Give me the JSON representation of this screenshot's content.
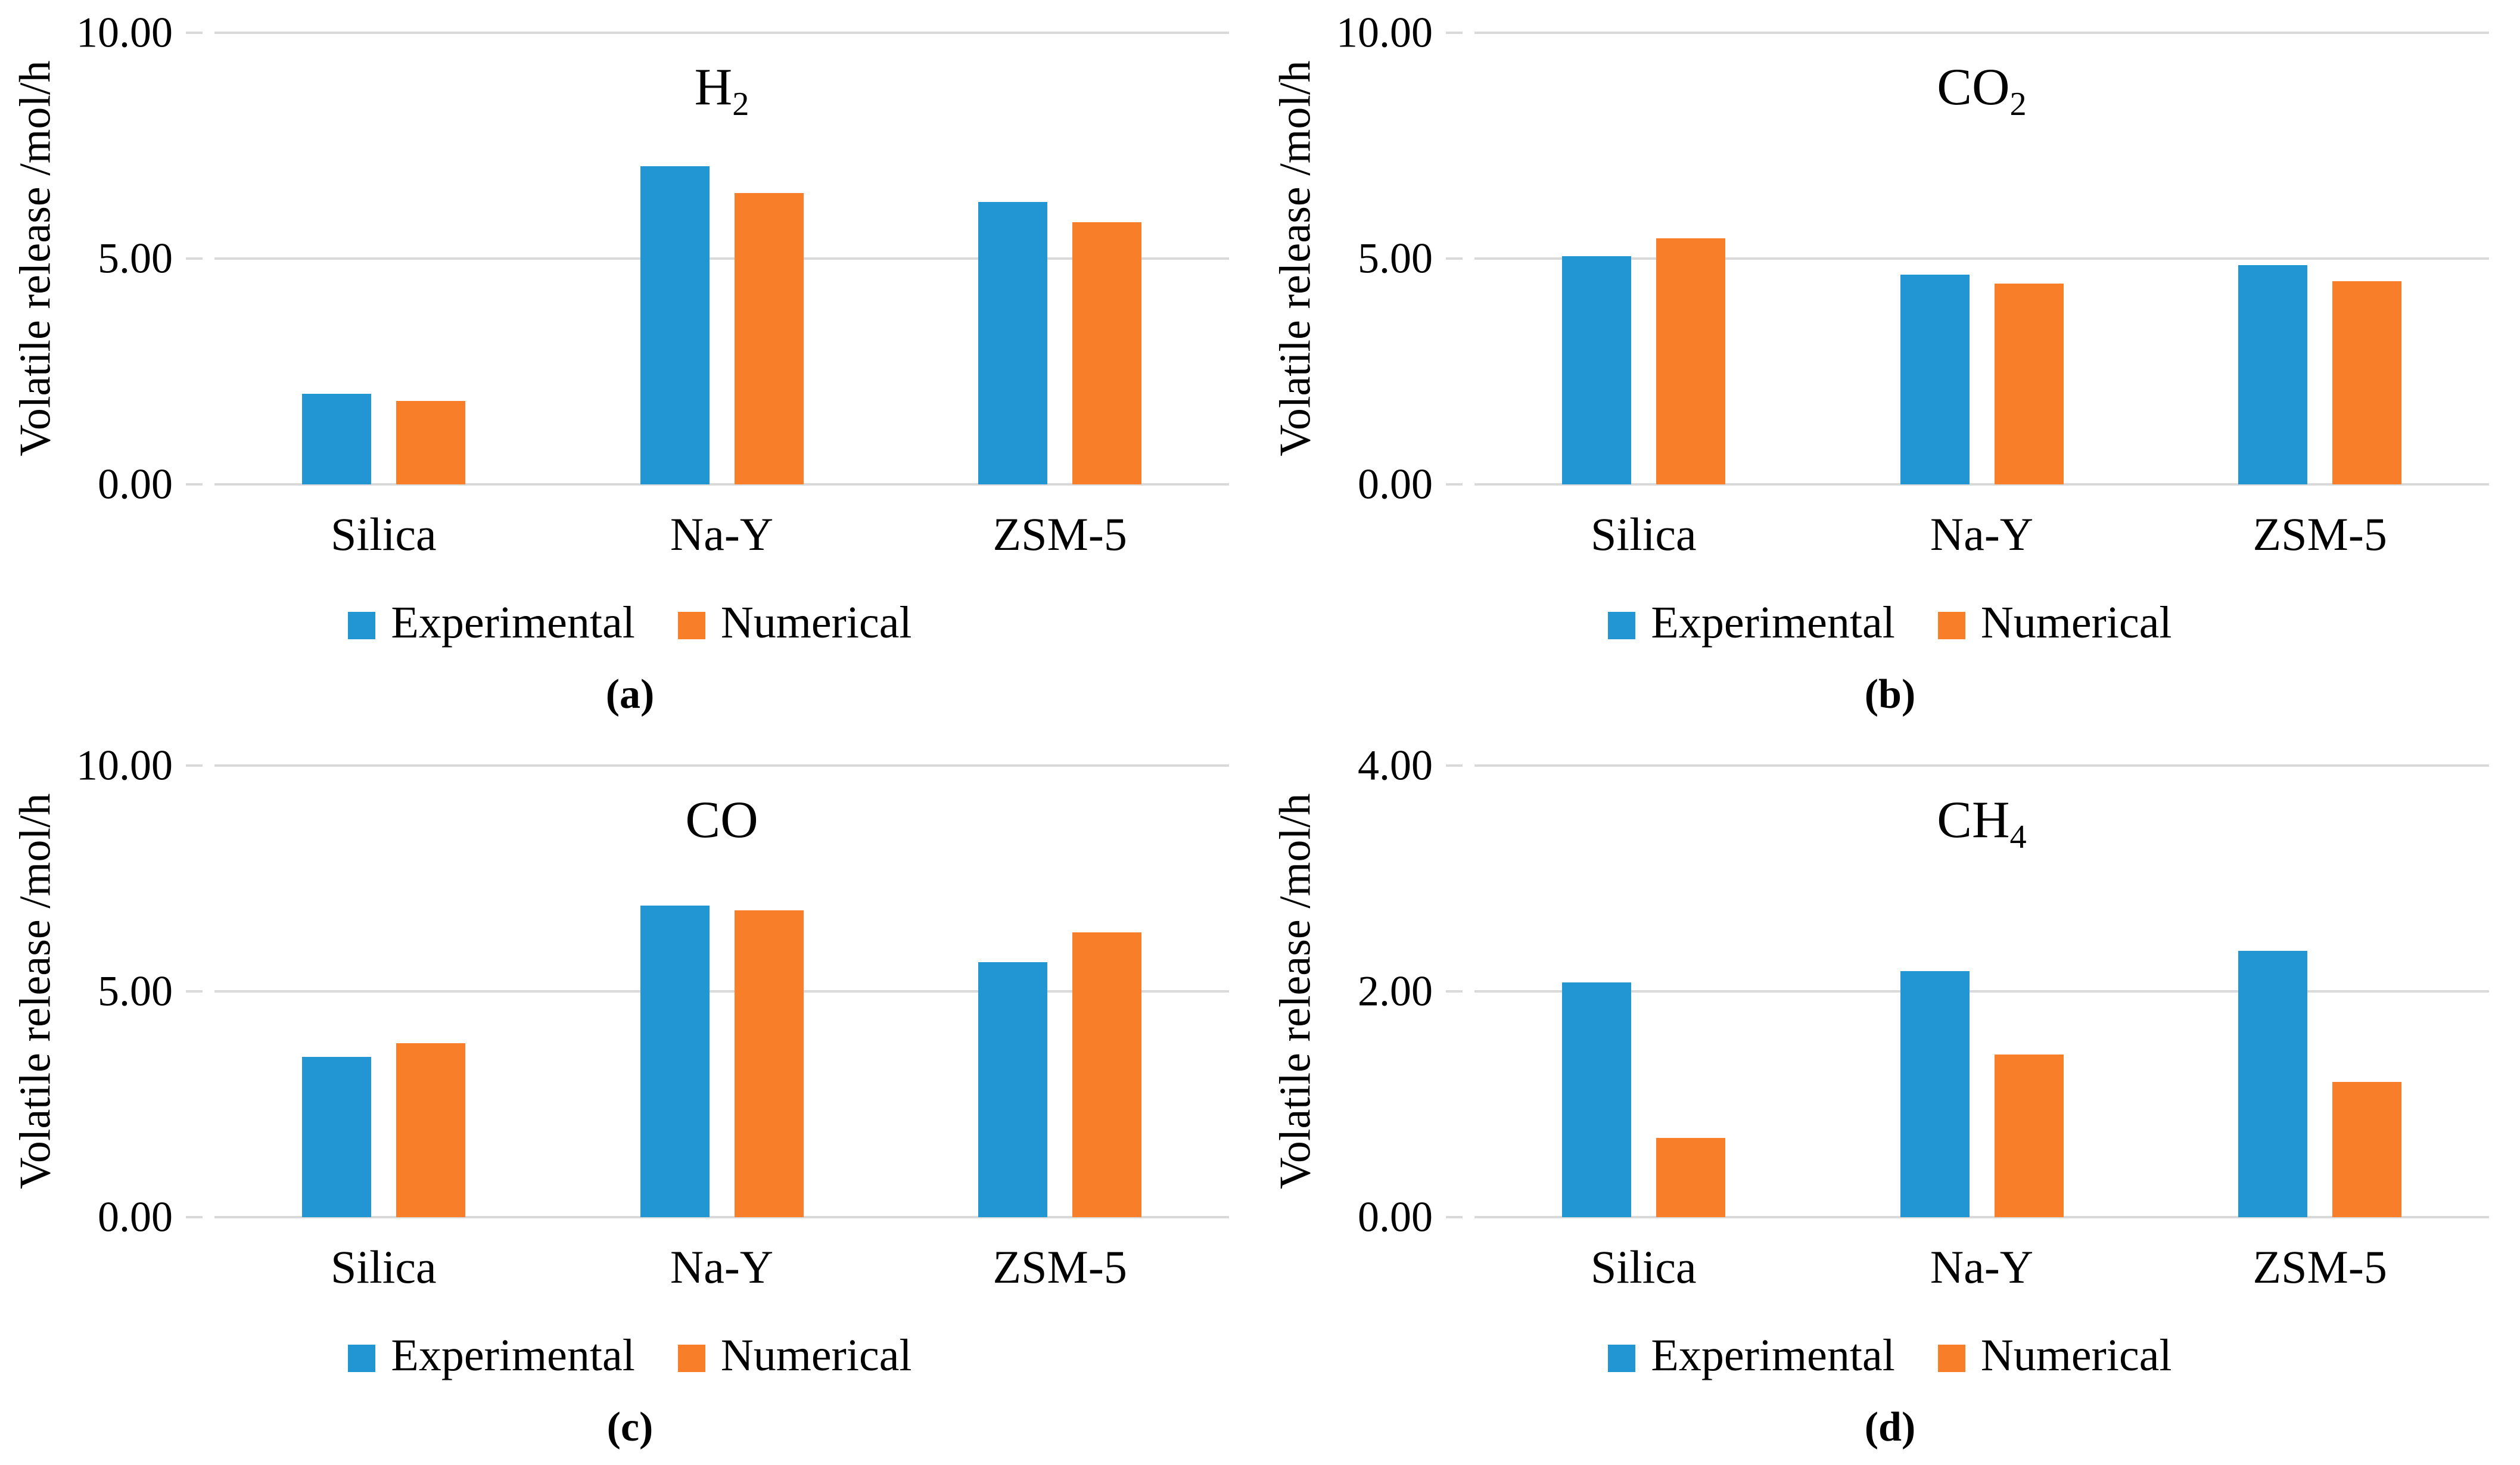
{
  "colors": {
    "experimental": "#2196D3",
    "numerical": "#F97E29",
    "gridline": "#D9D9D9",
    "text": "#000000",
    "background": "#FFFFFF"
  },
  "chart_data": [
    {
      "id": "a",
      "type": "bar",
      "title": "H2",
      "title_main": "H",
      "title_sub": "2",
      "caption": "(a)",
      "ylabel": "Volatile release /mol/h",
      "xlabel": "",
      "categories": [
        "Silica",
        "Na-Y",
        "ZSM-5"
      ],
      "series": [
        {
          "name": "Experimental",
          "values": [
            2.0,
            7.05,
            6.25
          ]
        },
        {
          "name": "Numerical",
          "values": [
            1.85,
            6.45,
            5.8
          ]
        }
      ],
      "ylim": [
        0,
        10
      ],
      "yticks": [
        10,
        5,
        0
      ],
      "ytick_labels": [
        "10.00",
        "5.00",
        "0.00"
      ],
      "grid": true,
      "legend_position": "bottom"
    },
    {
      "id": "b",
      "type": "bar",
      "title": "CO2",
      "title_main": "CO",
      "title_sub": "2",
      "caption": "(b)",
      "ylabel": "Volatile release /mol/h",
      "xlabel": "",
      "categories": [
        "Silica",
        "Na-Y",
        "ZSM-5"
      ],
      "series": [
        {
          "name": "Experimental",
          "values": [
            5.05,
            4.65,
            4.85
          ]
        },
        {
          "name": "Numerical",
          "values": [
            5.45,
            4.45,
            4.5
          ]
        }
      ],
      "ylim": [
        0,
        10
      ],
      "yticks": [
        10,
        5,
        0
      ],
      "ytick_labels": [
        "10.00",
        "5.00",
        "0.00"
      ],
      "grid": true,
      "legend_position": "bottom"
    },
    {
      "id": "c",
      "type": "bar",
      "title": "CO",
      "title_main": "CO",
      "title_sub": "",
      "caption": "(c)",
      "ylabel": "Volatile release /mol/h",
      "xlabel": "",
      "categories": [
        "Silica",
        "Na-Y",
        "ZSM-5"
      ],
      "series": [
        {
          "name": "Experimental",
          "values": [
            3.55,
            6.9,
            5.65
          ]
        },
        {
          "name": "Numerical",
          "values": [
            3.85,
            6.8,
            6.3
          ]
        }
      ],
      "ylim": [
        0,
        10
      ],
      "yticks": [
        10,
        5,
        0
      ],
      "ytick_labels": [
        "10.00",
        "5.00",
        "0.00"
      ],
      "grid": true,
      "legend_position": "bottom"
    },
    {
      "id": "d",
      "type": "bar",
      "title": "CH4",
      "title_main": "CH",
      "title_sub": "4",
      "caption": "(d)",
      "ylabel": "Volatile release /mol/h",
      "xlabel": "",
      "categories": [
        "Silica",
        "Na-Y",
        "ZSM-5"
      ],
      "series": [
        {
          "name": "Experimental",
          "values": [
            2.08,
            2.18,
            2.36
          ]
        },
        {
          "name": "Numerical",
          "values": [
            0.7,
            1.44,
            1.2
          ]
        }
      ],
      "ylim": [
        0,
        4
      ],
      "yticks": [
        4,
        2,
        0
      ],
      "ytick_labels": [
        "4.00",
        "2.00",
        "0.00"
      ],
      "grid": true,
      "legend_position": "bottom"
    }
  ]
}
